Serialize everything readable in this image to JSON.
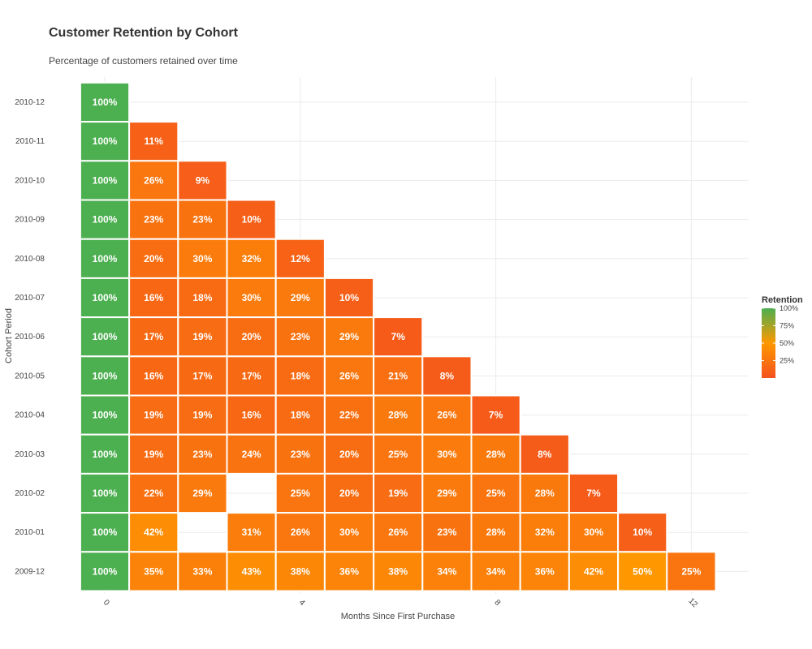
{
  "chart_data": {
    "type": "heatmap",
    "title": "Customer Retention by Cohort",
    "subtitle": "Percentage of customers retained over time",
    "xlabel": "Months Since First Purchase",
    "ylabel": "Cohort Period",
    "x_ticks": [
      0,
      4,
      8,
      12
    ],
    "xlim": [
      0,
      13
    ],
    "cohorts": [
      "2009-12",
      "2010-01",
      "2010-02",
      "2010-03",
      "2010-04",
      "2010-05",
      "2010-06",
      "2010-07",
      "2010-08",
      "2010-09",
      "2010-10",
      "2010-11",
      "2010-12"
    ],
    "values": {
      "2009-12": [
        100,
        35,
        33,
        43,
        38,
        36,
        38,
        34,
        34,
        36,
        42,
        50,
        25
      ],
      "2010-01": [
        100,
        42,
        null,
        31,
        26,
        30,
        26,
        23,
        28,
        32,
        30,
        10
      ],
      "2010-02": [
        100,
        22,
        29,
        null,
        25,
        20,
        19,
        29,
        25,
        28,
        7
      ],
      "2010-03": [
        100,
        19,
        23,
        24,
        23,
        20,
        25,
        30,
        28,
        8
      ],
      "2010-04": [
        100,
        19,
        19,
        16,
        18,
        22,
        28,
        26,
        7
      ],
      "2010-05": [
        100,
        16,
        17,
        17,
        18,
        26,
        21,
        8
      ],
      "2010-06": [
        100,
        17,
        19,
        20,
        23,
        29,
        7
      ],
      "2010-07": [
        100,
        16,
        18,
        30,
        29,
        10
      ],
      "2010-08": [
        100,
        20,
        30,
        32,
        12
      ],
      "2010-09": [
        100,
        23,
        23,
        10
      ],
      "2010-10": [
        100,
        26,
        9
      ],
      "2010-11": [
        100,
        11
      ],
      "2010-12": [
        100
      ]
    },
    "value_suffix": "%",
    "grid": true,
    "legend": {
      "title": "Retention",
      "placement": "right",
      "ticks": [
        100,
        75,
        50,
        25
      ],
      "tick_labels": [
        "100%",
        "75%",
        "50%",
        "25%"
      ],
      "color_stops": [
        {
          "value": 0,
          "color": "#f4511e"
        },
        {
          "value": 50,
          "color": "#ff9800"
        },
        {
          "value": 100,
          "color": "#4caf50"
        }
      ]
    }
  }
}
